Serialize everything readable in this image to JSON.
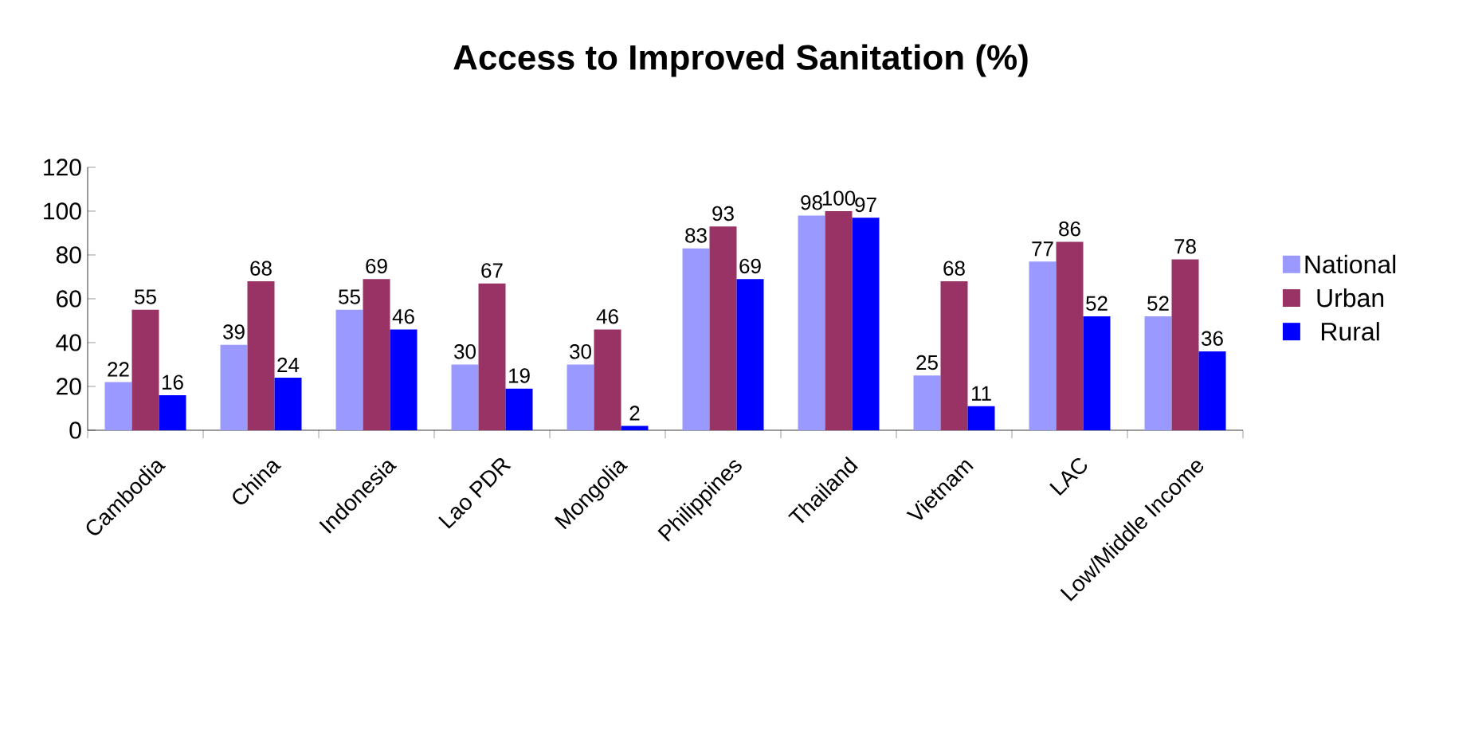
{
  "chart_data": {
    "type": "bar",
    "title": "Access to Improved Sanitation (%)",
    "categories": [
      "Cambodia",
      "China",
      "Indonesia",
      "Lao PDR",
      "Mongolia",
      "Philippines",
      "Thailand",
      "Vietnam",
      "LAC",
      "Low/Middle Income"
    ],
    "series": [
      {
        "name": "National",
        "color": "#9999ff",
        "values": [
          22,
          39,
          55,
          30,
          30,
          83,
          98,
          25,
          77,
          52
        ]
      },
      {
        "name": "Urban",
        "color": "#993366",
        "values": [
          55,
          68,
          69,
          67,
          46,
          93,
          100,
          68,
          86,
          78
        ]
      },
      {
        "name": "Rural",
        "color": "#0000ff",
        "values": [
          16,
          24,
          46,
          19,
          2,
          69,
          97,
          11,
          52,
          36
        ]
      }
    ],
    "ylim": [
      0,
      120
    ],
    "yticks": [
      0,
      20,
      40,
      60,
      80,
      100,
      120
    ],
    "data_labels": true,
    "legend": "right",
    "grid": false
  }
}
